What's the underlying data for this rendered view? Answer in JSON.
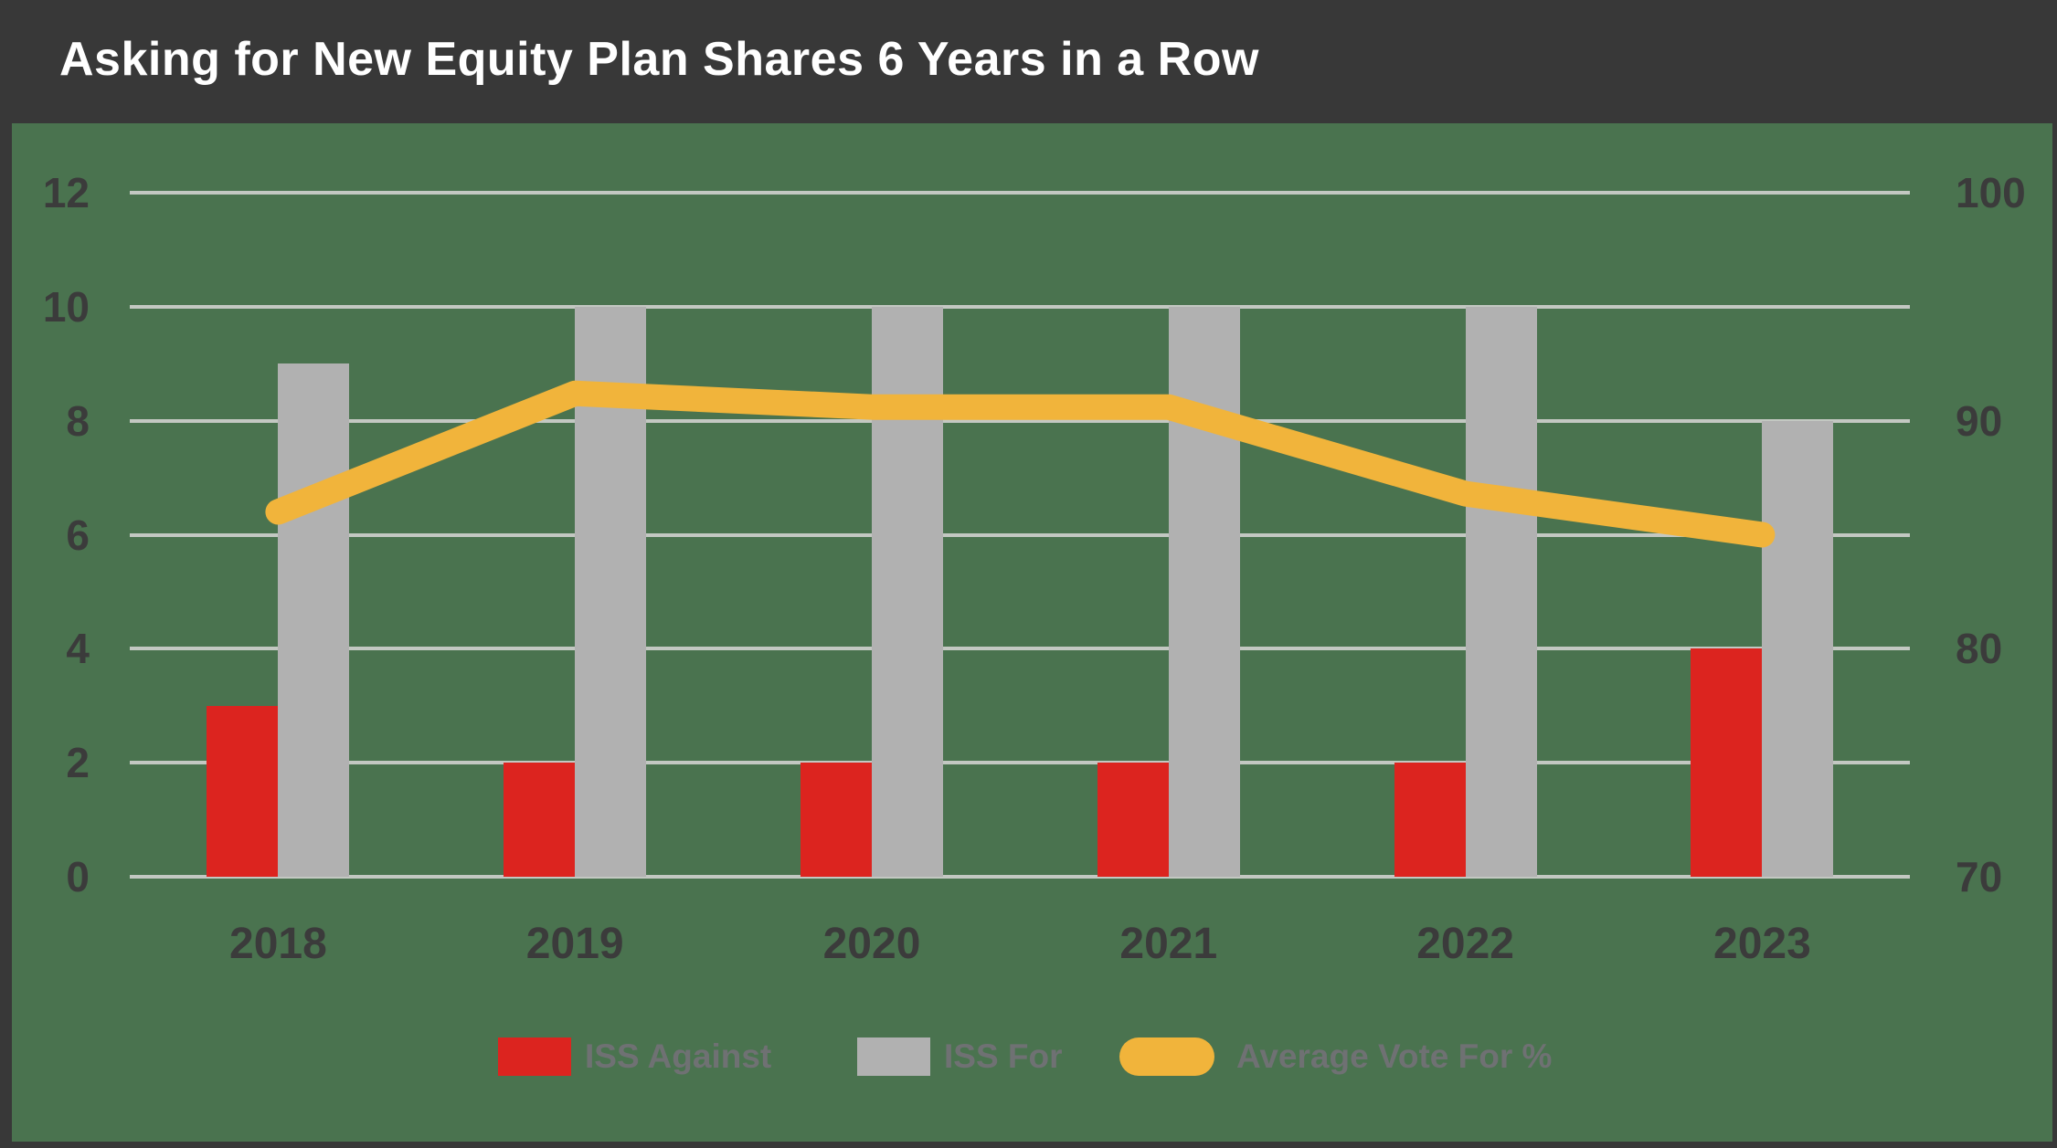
{
  "title": "Asking for New Equity Plan Shares 6 Years in a Row",
  "colors": {
    "header_bg": "#383838",
    "chart_bg": "#4A734F",
    "red": "#DC241F",
    "gray_bar": "#B1B1B1",
    "yellow": "#F1B43B",
    "gridline": "#C3C8C2",
    "axis_text": "#3B3B3B",
    "legend_text": "#6F7173",
    "title_text": "#FFFFFF"
  },
  "chart_data": {
    "type": "bar",
    "subtype": "grouped-bars-with-line-combo",
    "categories": [
      "2018",
      "2019",
      "2020",
      "2021",
      "2022",
      "2023"
    ],
    "series": [
      {
        "name": "ISS Against",
        "type": "bar",
        "axis": "left",
        "color_key": "red",
        "values": [
          3,
          2,
          2,
          2,
          2,
          4
        ]
      },
      {
        "name": "ISS For",
        "type": "bar",
        "axis": "left",
        "color_key": "gray_bar",
        "values": [
          9,
          10,
          10,
          10,
          10,
          8
        ]
      },
      {
        "name": "Average Vote For %",
        "type": "line",
        "axis": "right",
        "color_key": "yellow",
        "values": [
          86,
          91.2,
          90.6,
          90.6,
          86.8,
          85
        ]
      }
    ],
    "left_axis": {
      "range": [
        0,
        12
      ],
      "ticks": [
        0,
        2,
        4,
        6,
        8,
        10,
        12
      ]
    },
    "right_axis": {
      "range": [
        70,
        100
      ],
      "ticks": [
        70,
        80,
        90,
        100
      ]
    },
    "grid": true,
    "legend_position": "bottom"
  }
}
